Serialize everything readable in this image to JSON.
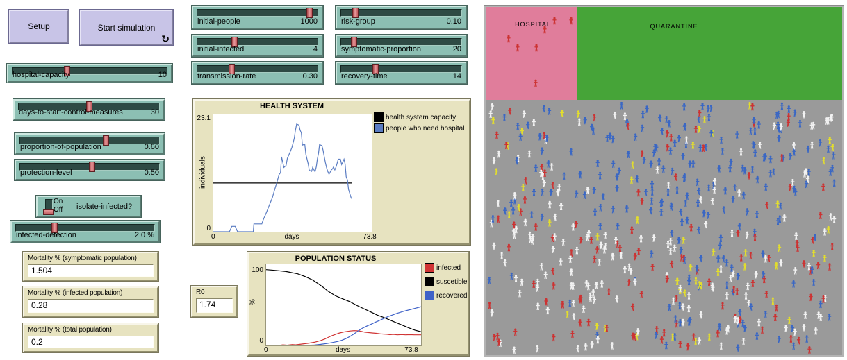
{
  "buttons": {
    "setup_label": "Setup",
    "start_label": "Start simulation",
    "forever_icon": "↻"
  },
  "sliders": [
    {
      "label": "hospital-capacity",
      "value": "10",
      "handle": 0.35
    },
    {
      "label": "days-to-start-control-measures",
      "value": "30",
      "handle": 0.5
    },
    {
      "label": "proportion-of-population",
      "value": "0.60",
      "handle": 0.62
    },
    {
      "label": "protection-level",
      "value": "0.50",
      "handle": 0.52
    },
    {
      "label": "infected-detection",
      "value": "2.0 %",
      "handle": 0.27
    },
    {
      "label": "initial-people",
      "value": "1000",
      "handle": 0.95
    },
    {
      "label": "initial-infected",
      "value": "4",
      "handle": 0.3
    },
    {
      "label": "transmission-rate",
      "value": "0.30",
      "handle": 0.28
    },
    {
      "label": "risk-group",
      "value": "0.10",
      "handle": 0.1
    },
    {
      "label": "symptomatic-proportion",
      "value": "20",
      "handle": 0.09
    },
    {
      "label": "recovery-time",
      "value": "14",
      "handle": 0.28
    }
  ],
  "switch": {
    "label": "isolate-infected?",
    "on": "On",
    "off": "Off",
    "state": "off"
  },
  "monitors": [
    {
      "label": "Mortality % (symptomatic population)",
      "value": "1.504"
    },
    {
      "label": "Mortality % (infected population)",
      "value": "0.28"
    },
    {
      "label": "Mortality % (total population)",
      "value": "0.2"
    },
    {
      "label": "R0",
      "value": "1.74"
    }
  ],
  "chart_data": [
    {
      "type": "line",
      "title": "HEALTH SYSTEM",
      "xlabel": "days",
      "ylabel": "individuals",
      "x_min_label": "0",
      "x_max_label": "73.8",
      "y_min_label": "0",
      "y_max_label": "23.1",
      "xlim": [
        0,
        73.8
      ],
      "ylim": [
        0,
        23.1
      ],
      "ydraw_max": 24.1,
      "grid": false,
      "legend_position": "right",
      "legend": [
        {
          "label": "health system capacity",
          "color": "#000000"
        },
        {
          "label": "people who need hospital",
          "color": "#5a7cc2"
        }
      ],
      "series": [
        {
          "name": "health system capacity",
          "color": "#000000",
          "points": [
            [
              0,
              10
            ],
            [
              64.4,
              10
            ]
          ]
        },
        {
          "name": "people who need hospital",
          "color": "#5a7cc2",
          "points": [
            [
              0,
              0
            ],
            [
              7.5,
              0
            ],
            [
              8.6,
              1.1
            ],
            [
              10.2,
              1.1
            ],
            [
              11.3,
              0
            ],
            [
              18.6,
              0
            ],
            [
              18.9,
              1.6
            ],
            [
              22.6,
              1.6
            ],
            [
              23.2,
              2.4
            ],
            [
              24.8,
              4
            ],
            [
              26.4,
              5.8
            ],
            [
              27.5,
              7
            ],
            [
              28.5,
              8.5
            ],
            [
              29.6,
              10.1
            ],
            [
              30.7,
              11.8
            ],
            [
              31.3,
              12.1
            ],
            [
              31.8,
              15.4
            ],
            [
              32.9,
              13.2
            ],
            [
              33.9,
              13.6
            ],
            [
              34.5,
              15.1
            ],
            [
              35.6,
              16.2
            ],
            [
              36.6,
              17.3
            ],
            [
              37.7,
              19.2
            ],
            [
              38.2,
              20.7
            ],
            [
              38.8,
              22.1
            ],
            [
              39.9,
              21.9
            ],
            [
              40.4,
              20.9
            ],
            [
              41,
              20.3
            ],
            [
              41.5,
              17.8
            ],
            [
              42.6,
              18
            ],
            [
              43.1,
              15.9
            ],
            [
              44.2,
              13.9
            ],
            [
              44.7,
              12.6
            ],
            [
              45.8,
              12.4
            ],
            [
              46.3,
              13.2
            ],
            [
              47.4,
              12.3
            ],
            [
              48,
              13.4
            ],
            [
              48.5,
              15
            ],
            [
              49,
              16.1
            ],
            [
              49.5,
              17.9
            ],
            [
              50.6,
              17.7
            ],
            [
              51.1,
              16.8
            ],
            [
              51.7,
              15.4
            ],
            [
              52.2,
              14.2
            ],
            [
              52.8,
              13.1
            ],
            [
              53.3,
              12.4
            ],
            [
              53.9,
              11.8
            ],
            [
              54.4,
              12.2
            ],
            [
              55,
              12.7
            ],
            [
              55.5,
              12.9
            ],
            [
              56,
              13.3
            ],
            [
              56.6,
              12.7
            ],
            [
              57.1,
              13.2
            ],
            [
              57.7,
              14.1
            ],
            [
              58.2,
              14.9
            ],
            [
              59.2,
              14.9
            ],
            [
              59.8,
              13.8
            ],
            [
              60.3,
              14.3
            ],
            [
              60.9,
              14.9
            ],
            [
              61.4,
              13.9
            ],
            [
              61.9,
              11.3
            ],
            [
              62.5,
              10.6
            ],
            [
              63,
              8.7
            ],
            [
              64.3,
              6.8
            ]
          ]
        }
      ]
    },
    {
      "type": "line",
      "title": "POPULATION STATUS",
      "xlabel": "days",
      "ylabel": "%",
      "x_min_label": "0",
      "x_max_label": "73.8",
      "y_min_label": "0",
      "y_max_label": "100",
      "xlim": [
        0,
        73.8
      ],
      "ylim": [
        0,
        100
      ],
      "ydraw_max": 107,
      "grid": false,
      "legend_position": "right",
      "legend": [
        {
          "label": "infected",
          "color": "#d03434"
        },
        {
          "label": "suscetible",
          "color": "#000000"
        },
        {
          "label": "recovered",
          "color": "#3f62c8"
        }
      ],
      "series": [
        {
          "name": "infected",
          "color": "#d03434",
          "points": [
            [
              0,
              0
            ],
            [
              6,
              0
            ],
            [
              8,
              0.8
            ],
            [
              10,
              0.4
            ],
            [
              12.5,
              1.2
            ],
            [
              14,
              0.8
            ],
            [
              17,
              1.8
            ],
            [
              20,
              2.8
            ],
            [
              23,
              4.2
            ],
            [
              26,
              6.5
            ],
            [
              28,
              8.5
            ],
            [
              29.5,
              10.5
            ],
            [
              31,
              12.5
            ],
            [
              33.5,
              15
            ],
            [
              35,
              16.5
            ],
            [
              37.5,
              18
            ],
            [
              40,
              19
            ],
            [
              42,
              19.5
            ],
            [
              44,
              19.2
            ],
            [
              45.5,
              18.5
            ],
            [
              47,
              17.5
            ],
            [
              48.5,
              17
            ],
            [
              50.5,
              16.5
            ],
            [
              52.5,
              16
            ],
            [
              54.5,
              15.3
            ],
            [
              56,
              15
            ],
            [
              57.5,
              14.7
            ],
            [
              59,
              14.2
            ],
            [
              60.5,
              14.6
            ],
            [
              62.5,
              14
            ],
            [
              64.5,
              14.4
            ],
            [
              66.5,
              14
            ],
            [
              68.5,
              14.3
            ],
            [
              70.5,
              14
            ],
            [
              73.8,
              14
            ]
          ]
        },
        {
          "name": "suscetible",
          "color": "#000000",
          "points": [
            [
              0,
              100
            ],
            [
              4,
              99
            ],
            [
              9.5,
              97.5
            ],
            [
              15,
              94.5
            ],
            [
              18.5,
              91
            ],
            [
              22,
              86.5
            ],
            [
              25,
              81
            ],
            [
              27.5,
              76
            ],
            [
              29.5,
              71.5
            ],
            [
              33,
              65.5
            ],
            [
              36.5,
              61.5
            ],
            [
              40,
              57.5
            ],
            [
              43,
              53
            ],
            [
              46.5,
              48.5
            ],
            [
              50,
              44
            ],
            [
              53,
              40
            ],
            [
              55.5,
              37.5
            ],
            [
              58.5,
              34
            ],
            [
              62,
              30
            ],
            [
              65.5,
              26
            ],
            [
              69,
              22
            ],
            [
              71,
              20
            ],
            [
              73.8,
              18
            ]
          ]
        },
        {
          "name": "recovered",
          "color": "#3f62c8",
          "points": [
            [
              0,
              0
            ],
            [
              19,
              0
            ],
            [
              23,
              0.6
            ],
            [
              26,
              1.5
            ],
            [
              29,
              2.6
            ],
            [
              31.5,
              3.8
            ],
            [
              34,
              5.2
            ],
            [
              36,
              6.8
            ],
            [
              38,
              9
            ],
            [
              40,
              12
            ],
            [
              42,
              15.5
            ],
            [
              44,
              19.5
            ],
            [
              46,
              23
            ],
            [
              48,
              25.5
            ],
            [
              50,
              28
            ],
            [
              52,
              30.5
            ],
            [
              54,
              33
            ],
            [
              56,
              35.5
            ],
            [
              58,
              38
            ],
            [
              60,
              40
            ],
            [
              62,
              42
            ],
            [
              64.5,
              44.2
            ],
            [
              66.5,
              45.8
            ],
            [
              69,
              47.6
            ],
            [
              71,
              49
            ],
            [
              73.8,
              51
            ]
          ]
        }
      ]
    }
  ],
  "world": {
    "hospital_label": "HOSPITAL",
    "quarantine_label": "QUARANTINE",
    "colors": {
      "background": "#9a9a9a",
      "hospital_zone": "#e07d9b",
      "quarantine_zone": "#46a438",
      "agent_blue": "#3a67c4",
      "agent_red": "#cc3333",
      "agent_white": "#f2f2f2",
      "agent_yellow": "#e3de2c"
    },
    "hospital_patients": [
      [
        99,
        20
      ],
      [
        123,
        20
      ],
      [
        85,
        33
      ],
      [
        33,
        46
      ],
      [
        46,
        59
      ],
      [
        73,
        59
      ],
      [
        72,
        110
      ]
    ],
    "agents": {
      "seed": 7,
      "count": 560,
      "approx_mix": {
        "blue": 0.45,
        "white": 0.27,
        "red": 0.21,
        "yellow": 0.07
      }
    }
  }
}
